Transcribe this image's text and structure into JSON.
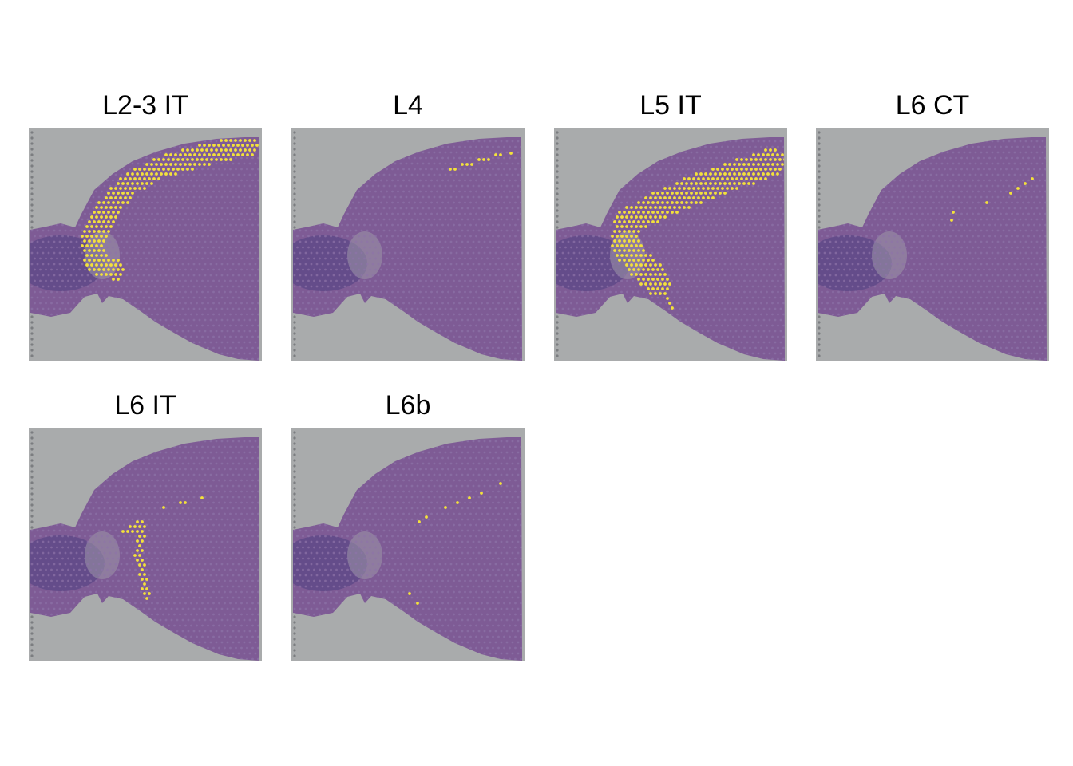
{
  "panels": [
    {
      "title": "L2-3 IT",
      "highlight": "yellow"
    },
    {
      "title": "L4",
      "highlight": "yellow"
    },
    {
      "title": "L5 IT",
      "highlight": "yellow"
    },
    {
      "title": "L6 CT",
      "highlight": "yellow"
    },
    {
      "title": "L6 IT",
      "highlight": "yellow"
    },
    {
      "title": "L6b",
      "highlight": "yellow"
    }
  ],
  "colors": {
    "background_slide": "#a9abac",
    "tissue": "#7e5b95",
    "tissue_dark": "#4f3f82",
    "spot_highlight": "#f4e23a",
    "spot_base": "#8d73a8"
  }
}
